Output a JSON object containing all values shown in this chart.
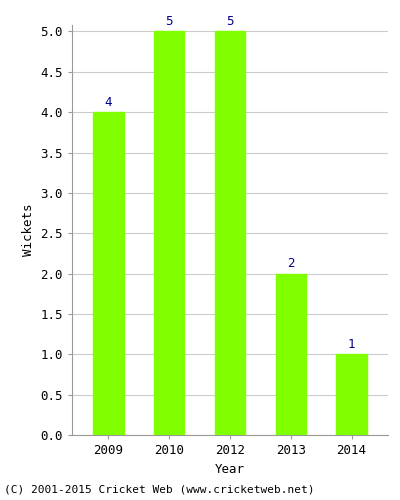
{
  "categories": [
    "2009",
    "2010",
    "2012",
    "2013",
    "2014"
  ],
  "values": [
    4,
    5,
    5,
    2,
    1
  ],
  "bar_color": "#7FFF00",
  "bar_edgecolor": "#7FFF00",
  "ylabel": "Wickets",
  "xlabel": "Year",
  "ylim": [
    0,
    5.0
  ],
  "yticks": [
    0.0,
    0.5,
    1.0,
    1.5,
    2.0,
    2.5,
    3.0,
    3.5,
    4.0,
    4.5,
    5.0
  ],
  "label_color": "#00008B",
  "label_fontsize": 9,
  "axis_label_fontsize": 9,
  "tick_fontsize": 9,
  "background_color": "#ffffff",
  "grid_color": "#cccccc",
  "footer_text": "(C) 2001-2015 Cricket Web (www.cricketweb.net)",
  "footer_fontsize": 8,
  "bar_width": 0.5
}
